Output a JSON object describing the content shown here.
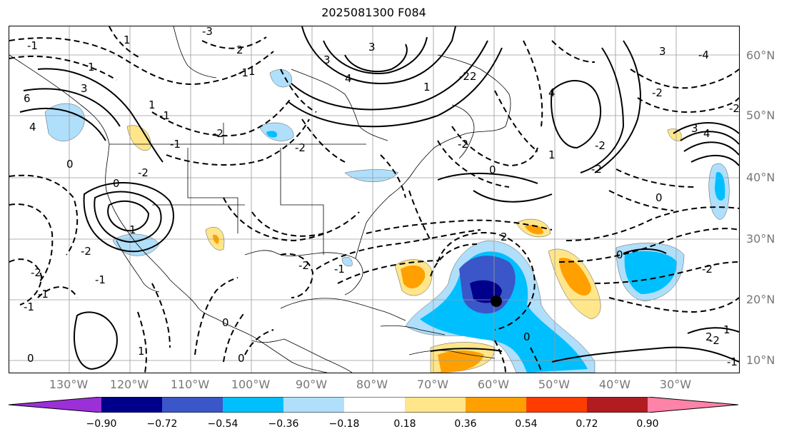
{
  "title": "2025081300 F084",
  "lat_labels": [
    "60°N",
    "50°N",
    "40°N",
    "30°N",
    "20°N",
    "10°N"
  ],
  "lon_labels": [
    "130°W",
    "120°W",
    "110°W",
    "100°W",
    "90°W",
    "80°W",
    "70°W",
    "60°W",
    "50°W",
    "40°W",
    "30°W"
  ],
  "colorbar": {
    "ticks": [
      "−0.90",
      "−0.72",
      "−0.54",
      "−0.36",
      "−0.18",
      "0.18",
      "0.36",
      "0.54",
      "0.72",
      "0.90"
    ],
    "colors": [
      "#9b30d9",
      "#00008b",
      "#3a56c8",
      "#00bfff",
      "#b0dffb",
      "#ffffff",
      "#ffe68a",
      "#ffa000",
      "#ff3c00",
      "#b01c20",
      "#ff82a8"
    ]
  },
  "contour_labels": [
    "1",
    "3",
    "2",
    "-1",
    "-3",
    "1",
    "3",
    "6",
    "4",
    "0",
    "-2",
    "-1",
    "-2",
    "-2",
    "3",
    "4",
    "-4",
    "1",
    "-1",
    "-2",
    "2",
    "3",
    "4",
    "3",
    "4",
    "-2",
    "0",
    "-2",
    "1",
    "0",
    "1",
    "-1",
    "-2",
    "0",
    "-1",
    "-2",
    "-1",
    "-2",
    "1",
    "-2",
    "-2",
    "0",
    "2",
    "1",
    "-1",
    "0",
    "-2",
    "2",
    "-1",
    "1",
    "-2",
    "-1",
    "0",
    "-2",
    "0",
    "1",
    "0"
  ],
  "storm_marker": {
    "lon": "60°W",
    "lat": "20°N"
  }
}
